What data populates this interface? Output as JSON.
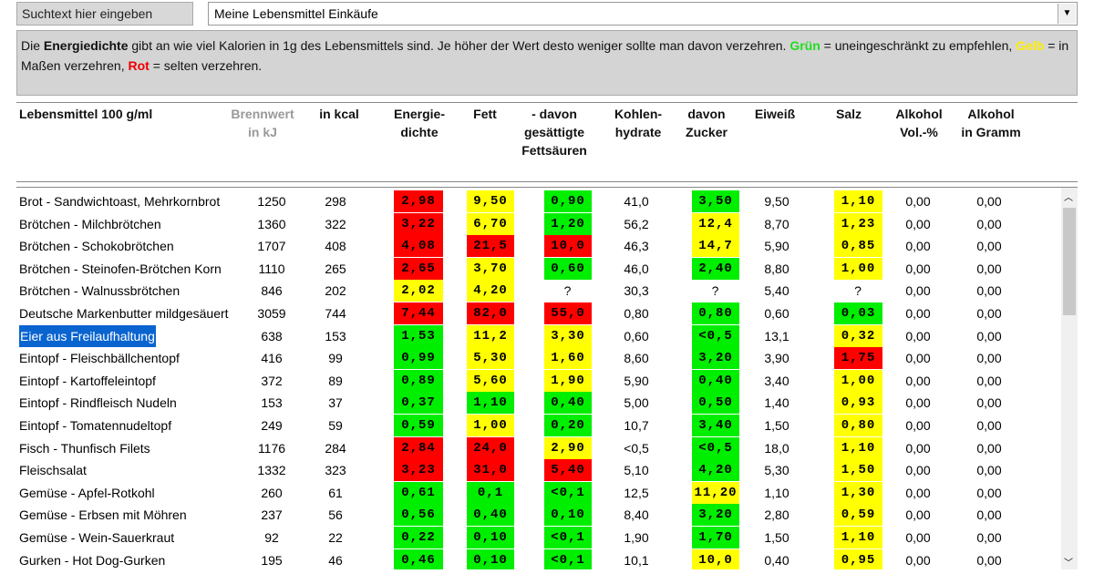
{
  "search_placeholder": "Suchtext hier eingeben",
  "dropdown": {
    "selected": "Meine Lebensmittel Einkäufe"
  },
  "info": {
    "segments": [
      {
        "text": "Die ",
        "style": "normal"
      },
      {
        "text": "Energiedichte",
        "style": "bold"
      },
      {
        "text": " gibt an wie viel Kalorien in 1g des Lebensmittels sind. Je höher der Wert desto weniger sollte man davon verzehren. ",
        "style": "normal"
      },
      {
        "text": "Grün",
        "style": "bold",
        "color": "#22dd22"
      },
      {
        "text": " = uneingeschränkt zu empfehlen, ",
        "style": "normal"
      },
      {
        "text": "Gelb",
        "style": "bold",
        "color": "#ffee00"
      },
      {
        "text": " = in Maßen verzehren, ",
        "style": "normal"
      },
      {
        "text": "Rot",
        "style": "bold",
        "color": "#ee0000"
      },
      {
        "text": " = selten verzehren.",
        "style": "normal"
      }
    ]
  },
  "table": {
    "columns": [
      {
        "lines": [
          "Lebensmittel 100 g/ml"
        ],
        "muted": false
      },
      {
        "lines": [
          "Brennwert",
          "in kJ"
        ],
        "muted": true
      },
      {
        "lines": [
          "in kcal"
        ],
        "muted": false
      },
      {
        "lines": [
          "Energie-",
          "dichte"
        ],
        "muted": false
      },
      {
        "lines": [
          "Fett"
        ],
        "muted": false
      },
      {
        "lines": [
          "- davon",
          "gesättigte",
          "Fettsäuren"
        ],
        "muted": false
      },
      {
        "lines": [
          "Kohlen-",
          "hydrate"
        ],
        "muted": false
      },
      {
        "lines": [
          "davon",
          "Zucker"
        ],
        "muted": false
      },
      {
        "lines": [
          "Eiweiß"
        ],
        "muted": false
      },
      {
        "lines": [
          "Salz"
        ],
        "muted": false
      },
      {
        "lines": [
          "Alkohol",
          "Vol.-%"
        ],
        "muted": false
      },
      {
        "lines": [
          "Alkohol",
          "in Gramm"
        ],
        "muted": false
      }
    ],
    "selected_row": 6,
    "rows": [
      {
        "cells": [
          "Brot - Sandwichtoast, Mehrkornbrot",
          "1250",
          "298",
          "2,98",
          "9,50",
          "0,90",
          "41,0",
          "3,50",
          "9,50",
          "1,10",
          "0,00",
          "0,00"
        ],
        "colors": [
          "#ff0000",
          "#ffff00",
          "#00ee00",
          "#00ee00",
          "#ffff00"
        ]
      },
      {
        "cells": [
          "Brötchen - Milchbrötchen",
          "1360",
          "322",
          "3,22",
          "6,70",
          "1,20",
          "56,2",
          "12,4",
          "8,70",
          "1,23",
          "0,00",
          "0,00"
        ],
        "colors": [
          "#ff0000",
          "#ffff00",
          "#00ee00",
          "#ffff00",
          "#ffff00"
        ]
      },
      {
        "cells": [
          "Brötchen - Schokobrötchen",
          "1707",
          "408",
          "4,08",
          "21,5",
          "10,0",
          "46,3",
          "14,7",
          "5,90",
          "0,85",
          "0,00",
          "0,00"
        ],
        "colors": [
          "#ff0000",
          "#ff0000",
          "#ff0000",
          "#ffff00",
          "#ffff00"
        ]
      },
      {
        "cells": [
          "Brötchen - Steinofen-Brötchen Korn",
          "1110",
          "265",
          "2,65",
          "3,70",
          "0,60",
          "46,0",
          "2,40",
          "8,80",
          "1,00",
          "0,00",
          "0,00"
        ],
        "colors": [
          "#ff0000",
          "#ffff00",
          "#00ee00",
          "#00ee00",
          "#ffff00"
        ]
      },
      {
        "cells": [
          "Brötchen - Walnussbrötchen",
          "846",
          "202",
          "2,02",
          "4,20",
          "?",
          "30,3",
          "?",
          "5,40",
          "?",
          "0,00",
          "0,00"
        ],
        "colors": [
          "#ffff00",
          "#ffff00",
          null,
          null,
          null
        ]
      },
      {
        "cells": [
          "Deutsche Markenbutter mildgesäuert",
          "3059",
          "744",
          "7,44",
          "82,0",
          "55,0",
          "0,80",
          "0,80",
          "0,60",
          "0,03",
          "0,00",
          "0,00"
        ],
        "colors": [
          "#ff0000",
          "#ff0000",
          "#ff0000",
          "#00ee00",
          "#00ee00"
        ]
      },
      {
        "cells": [
          "Eier aus Freilaufhaltung",
          "638",
          "153",
          "1,53",
          "11,2",
          "3,30",
          "0,60",
          "<0,5",
          "13,1",
          "0,32",
          "0,00",
          "0,00"
        ],
        "colors": [
          "#00ee00",
          "#ffff00",
          "#ffff00",
          "#00ee00",
          "#ffff00"
        ]
      },
      {
        "cells": [
          "Eintopf - Fleischbällchentopf",
          "416",
          "99",
          "0,99",
          "5,30",
          "1,60",
          "8,60",
          "3,20",
          "3,90",
          "1,75",
          "0,00",
          "0,00"
        ],
        "colors": [
          "#00ee00",
          "#ffff00",
          "#ffff00",
          "#00ee00",
          "#ff0000"
        ]
      },
      {
        "cells": [
          "Eintopf - Kartoffeleintopf",
          "372",
          "89",
          "0,89",
          "5,60",
          "1,90",
          "5,90",
          "0,40",
          "3,40",
          "1,00",
          "0,00",
          "0,00"
        ],
        "colors": [
          "#00ee00",
          "#ffff00",
          "#ffff00",
          "#00ee00",
          "#ffff00"
        ]
      },
      {
        "cells": [
          "Eintopf - Rindfleisch Nudeln",
          "153",
          "37",
          "0,37",
          "1,10",
          "0,40",
          "5,00",
          "0,50",
          "1,40",
          "0,93",
          "0,00",
          "0,00"
        ],
        "colors": [
          "#00ee00",
          "#00ee00",
          "#00ee00",
          "#00ee00",
          "#ffff00"
        ]
      },
      {
        "cells": [
          "Eintopf - Tomatennudeltopf",
          "249",
          "59",
          "0,59",
          "1,00",
          "0,20",
          "10,7",
          "3,40",
          "1,50",
          "0,80",
          "0,00",
          "0,00"
        ],
        "colors": [
          "#00ee00",
          "#ffff00",
          "#00ee00",
          "#00ee00",
          "#ffff00"
        ]
      },
      {
        "cells": [
          "Fisch - Thunfisch Filets",
          "1176",
          "284",
          "2,84",
          "24,0",
          "2,90",
          "<0,5",
          "<0,5",
          "18,0",
          "1,10",
          "0,00",
          "0,00"
        ],
        "colors": [
          "#ff0000",
          "#ff0000",
          "#ffff00",
          "#00ee00",
          "#ffff00"
        ]
      },
      {
        "cells": [
          "Fleischsalat",
          "1332",
          "323",
          "3,23",
          "31,0",
          "5,40",
          "5,10",
          "4,20",
          "5,30",
          "1,50",
          "0,00",
          "0,00"
        ],
        "colors": [
          "#ff0000",
          "#ff0000",
          "#ff0000",
          "#00ee00",
          "#ffff00"
        ]
      },
      {
        "cells": [
          "Gemüse - Apfel-Rotkohl",
          "260",
          "61",
          "0,61",
          "0,1",
          "<0,1",
          "12,5",
          "11,20",
          "1,10",
          "1,30",
          "0,00",
          "0,00"
        ],
        "colors": [
          "#00ee00",
          "#00ee00",
          "#00ee00",
          "#ffff00",
          "#ffff00"
        ]
      },
      {
        "cells": [
          "Gemüse - Erbsen mit Möhren",
          "237",
          "56",
          "0,56",
          "0,40",
          "0,10",
          "8,40",
          "3,20",
          "2,80",
          "0,59",
          "0,00",
          "0,00"
        ],
        "colors": [
          "#00ee00",
          "#00ee00",
          "#00ee00",
          "#00ee00",
          "#ffff00"
        ]
      },
      {
        "cells": [
          "Gemüse - Wein-Sauerkraut",
          "92",
          "22",
          "0,22",
          "0,10",
          "<0,1",
          "1,90",
          "1,70",
          "1,50",
          "1,10",
          "0,00",
          "0,00"
        ],
        "colors": [
          "#00ee00",
          "#00ee00",
          "#00ee00",
          "#00ee00",
          "#ffff00"
        ]
      },
      {
        "cells": [
          "Gurken - Hot Dog-Gurken",
          "195",
          "46",
          "0,46",
          "0,10",
          "<0,1",
          "10,1",
          "10,0",
          "0,40",
          "0,95",
          "0,00",
          "0,00"
        ],
        "colors": [
          "#00ee00",
          "#00ee00",
          "#00ee00",
          "#ffff00",
          "#ffff00"
        ]
      }
    ]
  }
}
